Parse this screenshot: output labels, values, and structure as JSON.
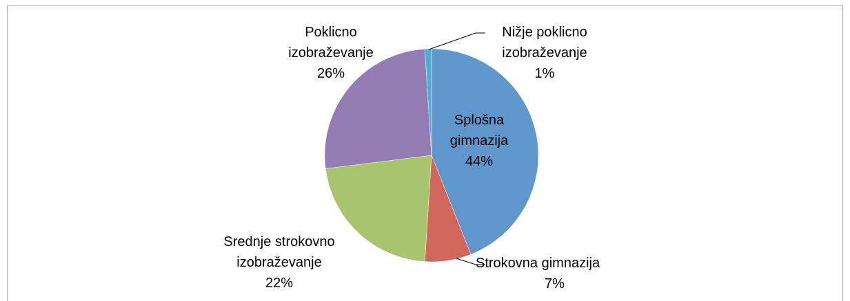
{
  "chart_data": {
    "type": "pie",
    "categories": [
      "Splošna gimnazija",
      "Strokovna gimnazija",
      "Srednje strokovno izobraževanje",
      "Poklicno izobraževanje",
      "Nižje poklicno izobraževanje"
    ],
    "values": [
      44,
      7,
      22,
      26,
      1
    ],
    "value_labels": [
      "44%",
      "7%",
      "22%",
      "26%",
      "1%"
    ],
    "colors": [
      "#5f96cc",
      "#d0665c",
      "#a9c46e",
      "#937cb4",
      "#4bb0cf"
    ]
  }
}
